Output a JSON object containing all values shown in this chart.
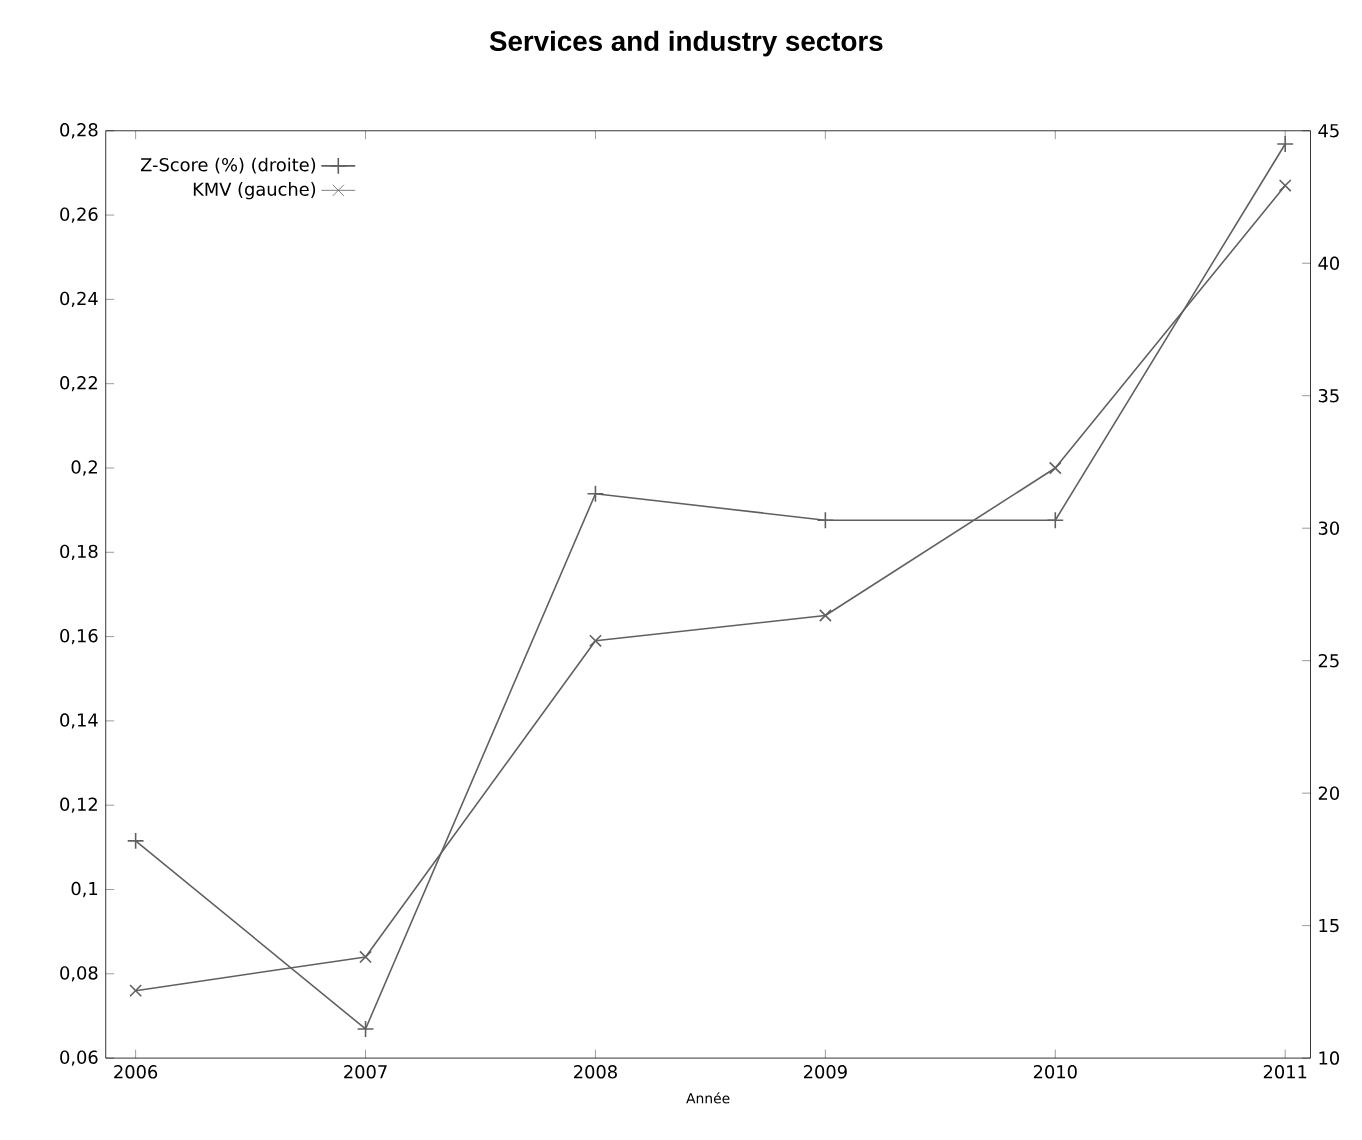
{
  "chart_data": {
    "type": "line",
    "title": "Services and industry sectors",
    "xlabel": "Année",
    "x": [
      2006,
      2007,
      2008,
      2009,
      2010,
      2011
    ],
    "series": [
      {
        "name": "Z-Score (%) (droite)",
        "color": "#606060",
        "axis": "y2",
        "marker": "plus",
        "values": [
          18.2,
          11.1,
          31.3,
          30.3,
          30.3,
          44.5
        ]
      },
      {
        "name": "KMV (gauche)",
        "color": "#606060",
        "axis": "y",
        "marker": "cross",
        "values": [
          0.076,
          0.084,
          0.159,
          0.165,
          0.2,
          0.267
        ]
      }
    ],
    "xlim": [
      2005.87,
      2011.11
    ],
    "xticks": [
      2006,
      2007,
      2008,
      2009,
      2010,
      2011
    ],
    "ylim": [
      0.06,
      0.28
    ],
    "yticks": [
      {
        "value": 0.06,
        "label": "0,06"
      },
      {
        "value": 0.08,
        "label": "0,08"
      },
      {
        "value": 0.1,
        "label": "0,1"
      },
      {
        "value": 0.12,
        "label": "0,12"
      },
      {
        "value": 0.14,
        "label": "0,14"
      },
      {
        "value": 0.16,
        "label": "0,16"
      },
      {
        "value": 0.18,
        "label": "0,18"
      },
      {
        "value": 0.2,
        "label": "0,2"
      },
      {
        "value": 0.22,
        "label": "0,22"
      },
      {
        "value": 0.24,
        "label": "0,24"
      },
      {
        "value": 0.26,
        "label": "0,26"
      },
      {
        "value": 0.28,
        "label": "0,28"
      }
    ],
    "y2lim": [
      10,
      45
    ],
    "y2ticks": [
      10,
      15,
      20,
      25,
      30,
      35,
      40,
      45
    ],
    "legend": "top left"
  }
}
